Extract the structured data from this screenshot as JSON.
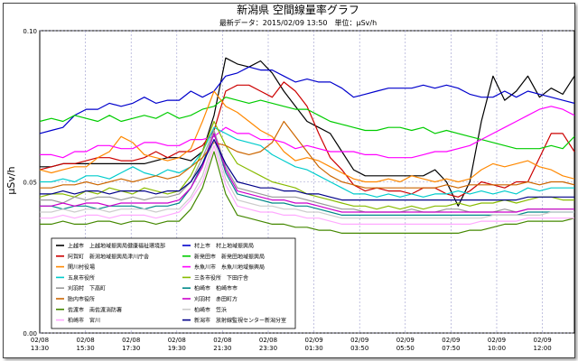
{
  "chart_data": {
    "type": "line",
    "title": "新潟県 空間線量率グラフ",
    "subtitle": "最新データ：2015/02/09 13:50　単位：μSv/h",
    "ylabel": "μSv/h",
    "xlabel": "",
    "ylim": [
      0.0,
      0.1
    ],
    "yticks": [
      "0.00",
      "0.05",
      "0.10"
    ],
    "x_ticks": [
      [
        "02/08",
        "13:30"
      ],
      [
        "02/08",
        "15:30"
      ],
      [
        "02/08",
        "17:30"
      ],
      [
        "02/08",
        "19:30"
      ],
      [
        "02/08",
        "21:30"
      ],
      [
        "02/08",
        "23:30"
      ],
      [
        "02/09",
        "01:30"
      ],
      [
        "02/09",
        "03:50"
      ],
      [
        "02/09",
        "05:50"
      ],
      [
        "02/09",
        "07:50"
      ],
      [
        "02/09",
        "10:00"
      ],
      [
        "02/09",
        "12:00"
      ]
    ],
    "grid": true,
    "legend_position": "bottom-left",
    "series": [
      {
        "name": "上越市　上越地域振興局健康福祉環境部",
        "color": "#000000",
        "values": [
          0.055,
          0.055,
          0.056,
          0.056,
          0.056,
          0.056,
          0.056,
          0.056,
          0.056,
          0.056,
          0.057,
          0.058,
          0.058,
          0.057,
          0.06,
          0.072,
          0.091,
          0.089,
          0.088,
          0.09,
          0.086,
          0.08,
          0.075,
          0.07,
          0.068,
          0.066,
          0.06,
          0.054,
          0.052,
          0.052,
          0.052,
          0.052,
          0.052,
          0.052,
          0.054,
          0.05,
          0.042,
          0.05,
          0.07,
          0.085,
          0.077,
          0.08,
          0.085,
          0.078,
          0.081,
          0.079,
          0.085
        ]
      },
      {
        "name": "村上市　村上地域振興局",
        "color": "#0000cc",
        "values": [
          0.066,
          0.067,
          0.068,
          0.072,
          0.074,
          0.074,
          0.076,
          0.075,
          0.076,
          0.078,
          0.076,
          0.077,
          0.077,
          0.08,
          0.078,
          0.08,
          0.085,
          0.086,
          0.088,
          0.087,
          0.087,
          0.085,
          0.083,
          0.084,
          0.083,
          0.083,
          0.081,
          0.078,
          0.079,
          0.08,
          0.081,
          0.081,
          0.081,
          0.082,
          0.081,
          0.082,
          0.081,
          0.079,
          0.078,
          0.078,
          0.08,
          0.078,
          0.08,
          0.079,
          0.078,
          0.077,
          0.076
        ]
      },
      {
        "name": "阿賀町　新潟地域振興局津川庁舎",
        "color": "#cc0000",
        "values": [
          0.054,
          0.055,
          0.056,
          0.056,
          0.057,
          0.058,
          0.058,
          0.057,
          0.057,
          0.058,
          0.06,
          0.058,
          0.06,
          0.06,
          0.062,
          0.067,
          0.08,
          0.082,
          0.082,
          0.08,
          0.078,
          0.083,
          0.08,
          0.075,
          0.066,
          0.058,
          0.054,
          0.049,
          0.047,
          0.048,
          0.047,
          0.047,
          0.046,
          0.048,
          0.048,
          0.046,
          0.045,
          0.047,
          0.05,
          0.049,
          0.048,
          0.05,
          0.05,
          0.058,
          0.066,
          0.066,
          0.06
        ]
      },
      {
        "name": "新発田市　新発田地域振興局",
        "color": "#00cc00",
        "values": [
          0.07,
          0.071,
          0.07,
          0.072,
          0.071,
          0.07,
          0.072,
          0.07,
          0.071,
          0.072,
          0.071,
          0.073,
          0.071,
          0.072,
          0.074,
          0.075,
          0.078,
          0.077,
          0.076,
          0.077,
          0.076,
          0.075,
          0.074,
          0.074,
          0.072,
          0.07,
          0.069,
          0.068,
          0.067,
          0.067,
          0.068,
          0.068,
          0.067,
          0.068,
          0.066,
          0.067,
          0.066,
          0.065,
          0.064,
          0.063,
          0.062,
          0.061,
          0.061,
          0.061,
          0.062,
          0.061,
          0.065
        ]
      },
      {
        "name": "関川村役場",
        "color": "#ff8800",
        "values": [
          0.054,
          0.053,
          0.054,
          0.055,
          0.055,
          0.058,
          0.06,
          0.065,
          0.063,
          0.059,
          0.058,
          0.057,
          0.058,
          0.061,
          0.07,
          0.08,
          0.075,
          0.073,
          0.07,
          0.067,
          0.065,
          0.06,
          0.057,
          0.058,
          0.057,
          0.055,
          0.053,
          0.051,
          0.05,
          0.05,
          0.051,
          0.05,
          0.052,
          0.051,
          0.05,
          0.051,
          0.05,
          0.051,
          0.054,
          0.056,
          0.055,
          0.056,
          0.057,
          0.055,
          0.054,
          0.052,
          0.051
        ]
      },
      {
        "name": "糸魚川市　糸魚川地域振興局",
        "color": "#ff00ff",
        "values": [
          0.059,
          0.059,
          0.058,
          0.06,
          0.06,
          0.062,
          0.062,
          0.061,
          0.061,
          0.063,
          0.063,
          0.062,
          0.062,
          0.064,
          0.064,
          0.065,
          0.068,
          0.066,
          0.066,
          0.064,
          0.064,
          0.063,
          0.061,
          0.062,
          0.061,
          0.06,
          0.06,
          0.06,
          0.059,
          0.059,
          0.058,
          0.058,
          0.058,
          0.059,
          0.06,
          0.06,
          0.061,
          0.062,
          0.064,
          0.066,
          0.068,
          0.07,
          0.072,
          0.074,
          0.075,
          0.074,
          0.072
        ]
      },
      {
        "name": "五泉市役所",
        "color": "#00cccc",
        "values": [
          0.05,
          0.05,
          0.051,
          0.05,
          0.052,
          0.052,
          0.051,
          0.053,
          0.055,
          0.053,
          0.052,
          0.054,
          0.053,
          0.055,
          0.06,
          0.068,
          0.066,
          0.064,
          0.063,
          0.062,
          0.059,
          0.057,
          0.055,
          0.054,
          0.052,
          0.05,
          0.048,
          0.046,
          0.046,
          0.045,
          0.046,
          0.045,
          0.046,
          0.045,
          0.046,
          0.046,
          0.047,
          0.046,
          0.047,
          0.046,
          0.047,
          0.046,
          0.048,
          0.047,
          0.048,
          0.048,
          0.048
        ]
      },
      {
        "name": "三条市役所　下田庁舎",
        "color": "#88bb00",
        "values": [
          0.045,
          0.046,
          0.046,
          0.045,
          0.047,
          0.046,
          0.048,
          0.047,
          0.046,
          0.048,
          0.047,
          0.046,
          0.047,
          0.052,
          0.06,
          0.07,
          0.062,
          0.056,
          0.054,
          0.052,
          0.05,
          0.049,
          0.048,
          0.046,
          0.045,
          0.044,
          0.043,
          0.042,
          0.042,
          0.041,
          0.042,
          0.041,
          0.042,
          0.041,
          0.042,
          0.042,
          0.043,
          0.042,
          0.043,
          0.043,
          0.044,
          0.043,
          0.044,
          0.045,
          0.045,
          0.044,
          0.044
        ]
      },
      {
        "name": "刈羽村　下高町",
        "color": "#999999",
        "values": [
          0.044,
          0.044,
          0.043,
          0.045,
          0.044,
          0.045,
          0.045,
          0.044,
          0.045,
          0.044,
          0.045,
          0.045,
          0.046,
          0.05,
          0.058,
          0.067,
          0.055,
          0.048,
          0.047,
          0.046,
          0.045,
          0.045,
          0.045,
          0.044,
          0.043,
          0.042,
          0.041,
          0.041,
          0.04,
          0.04,
          0.04,
          0.04,
          0.041,
          0.04,
          0.04,
          0.041,
          0.041,
          0.04,
          0.04,
          0.04,
          0.041,
          0.04,
          0.041,
          0.041,
          0.041,
          0.041,
          0.041
        ]
      },
      {
        "name": "柏崎市　柏崎市市",
        "color": "#008888",
        "values": [
          0.042,
          0.042,
          0.041,
          0.042,
          0.042,
          0.041,
          0.042,
          0.042,
          0.042,
          0.041,
          0.042,
          0.042,
          0.043,
          0.048,
          0.056,
          0.066,
          0.053,
          0.046,
          0.045,
          0.044,
          0.043,
          0.043,
          0.042,
          0.042,
          0.041,
          0.04,
          0.039,
          0.039,
          0.039,
          0.039,
          0.039,
          0.039,
          0.039,
          0.039,
          0.039,
          0.039,
          0.039,
          0.039,
          0.039,
          0.039,
          0.039,
          0.039,
          0.04,
          0.04,
          0.04,
          0.04,
          0.04
        ]
      },
      {
        "name": "胎内市役所",
        "color": "#cc6600",
        "values": [
          0.048,
          0.048,
          0.049,
          0.049,
          0.05,
          0.049,
          0.05,
          0.051,
          0.05,
          0.051,
          0.052,
          0.051,
          0.052,
          0.055,
          0.058,
          0.063,
          0.062,
          0.06,
          0.059,
          0.06,
          0.063,
          0.07,
          0.065,
          0.06,
          0.055,
          0.052,
          0.05,
          0.049,
          0.048,
          0.048,
          0.048,
          0.048,
          0.048,
          0.048,
          0.048,
          0.049,
          0.048,
          0.049,
          0.049,
          0.049,
          0.049,
          0.049,
          0.05,
          0.049,
          0.05,
          0.05,
          0.049
        ]
      },
      {
        "name": "刈羽村　赤田町方",
        "color": "#cc00cc",
        "values": [
          0.042,
          0.042,
          0.043,
          0.042,
          0.043,
          0.043,
          0.042,
          0.043,
          0.043,
          0.043,
          0.043,
          0.043,
          0.044,
          0.048,
          0.055,
          0.066,
          0.054,
          0.047,
          0.046,
          0.045,
          0.044,
          0.044,
          0.043,
          0.043,
          0.042,
          0.041,
          0.04,
          0.04,
          0.04,
          0.04,
          0.04,
          0.04,
          0.04,
          0.04,
          0.04,
          0.04,
          0.04,
          0.04,
          0.04,
          0.04,
          0.04,
          0.04,
          0.041,
          0.041,
          0.041,
          0.041,
          0.041
        ]
      },
      {
        "name": "佐渡市　南佐渡消防署",
        "color": "#448800",
        "values": [
          0.036,
          0.036,
          0.037,
          0.036,
          0.036,
          0.037,
          0.037,
          0.036,
          0.037,
          0.037,
          0.036,
          0.037,
          0.037,
          0.041,
          0.048,
          0.06,
          0.046,
          0.039,
          0.038,
          0.037,
          0.036,
          0.036,
          0.035,
          0.035,
          0.034,
          0.034,
          0.033,
          0.033,
          0.033,
          0.033,
          0.033,
          0.033,
          0.033,
          0.033,
          0.033,
          0.033,
          0.033,
          0.034,
          0.034,
          0.035,
          0.036,
          0.036,
          0.037,
          0.037,
          0.037,
          0.037,
          0.038
        ]
      },
      {
        "name": "柏崎市　笠浜",
        "color": "#cccccc",
        "values": [
          0.04,
          0.04,
          0.041,
          0.04,
          0.041,
          0.041,
          0.04,
          0.041,
          0.041,
          0.041,
          0.04,
          0.041,
          0.041,
          0.045,
          0.052,
          0.064,
          0.051,
          0.044,
          0.043,
          0.042,
          0.042,
          0.041,
          0.041,
          0.04,
          0.04,
          0.039,
          0.038,
          0.038,
          0.038,
          0.038,
          0.038,
          0.038,
          0.038,
          0.038,
          0.038,
          0.038,
          0.038,
          0.038,
          0.038,
          0.039,
          0.039,
          0.039,
          0.039,
          0.039,
          0.04,
          0.04,
          0.04
        ]
      },
      {
        "name": "柏崎市　宮川",
        "color": "#ffaaff",
        "values": [
          0.038,
          0.038,
          0.039,
          0.038,
          0.039,
          0.039,
          0.038,
          0.039,
          0.039,
          0.039,
          0.038,
          0.039,
          0.04,
          0.044,
          0.05,
          0.062,
          0.049,
          0.042,
          0.041,
          0.04,
          0.04,
          0.039,
          0.039,
          0.038,
          0.038,
          0.037,
          0.036,
          0.036,
          0.036,
          0.036,
          0.036,
          0.036,
          0.036,
          0.036,
          0.036,
          0.036,
          0.036,
          0.036,
          0.037,
          0.037,
          0.037,
          0.037,
          0.038,
          0.038,
          0.038,
          0.038,
          0.038
        ]
      },
      {
        "name": "新潟市　放射線監視センター新潟分室",
        "color": "#000088",
        "values": [
          0.046,
          0.046,
          0.047,
          0.046,
          0.047,
          0.047,
          0.046,
          0.047,
          0.047,
          0.047,
          0.046,
          0.047,
          0.047,
          0.05,
          0.056,
          0.064,
          0.056,
          0.05,
          0.049,
          0.048,
          0.048,
          0.047,
          0.047,
          0.046,
          0.046,
          0.045,
          0.044,
          0.044,
          0.044,
          0.044,
          0.044,
          0.044,
          0.044,
          0.044,
          0.044,
          0.044,
          0.044,
          0.044,
          0.044,
          0.044,
          0.044,
          0.044,
          0.045,
          0.045,
          0.045,
          0.045,
          0.045
        ]
      }
    ]
  }
}
